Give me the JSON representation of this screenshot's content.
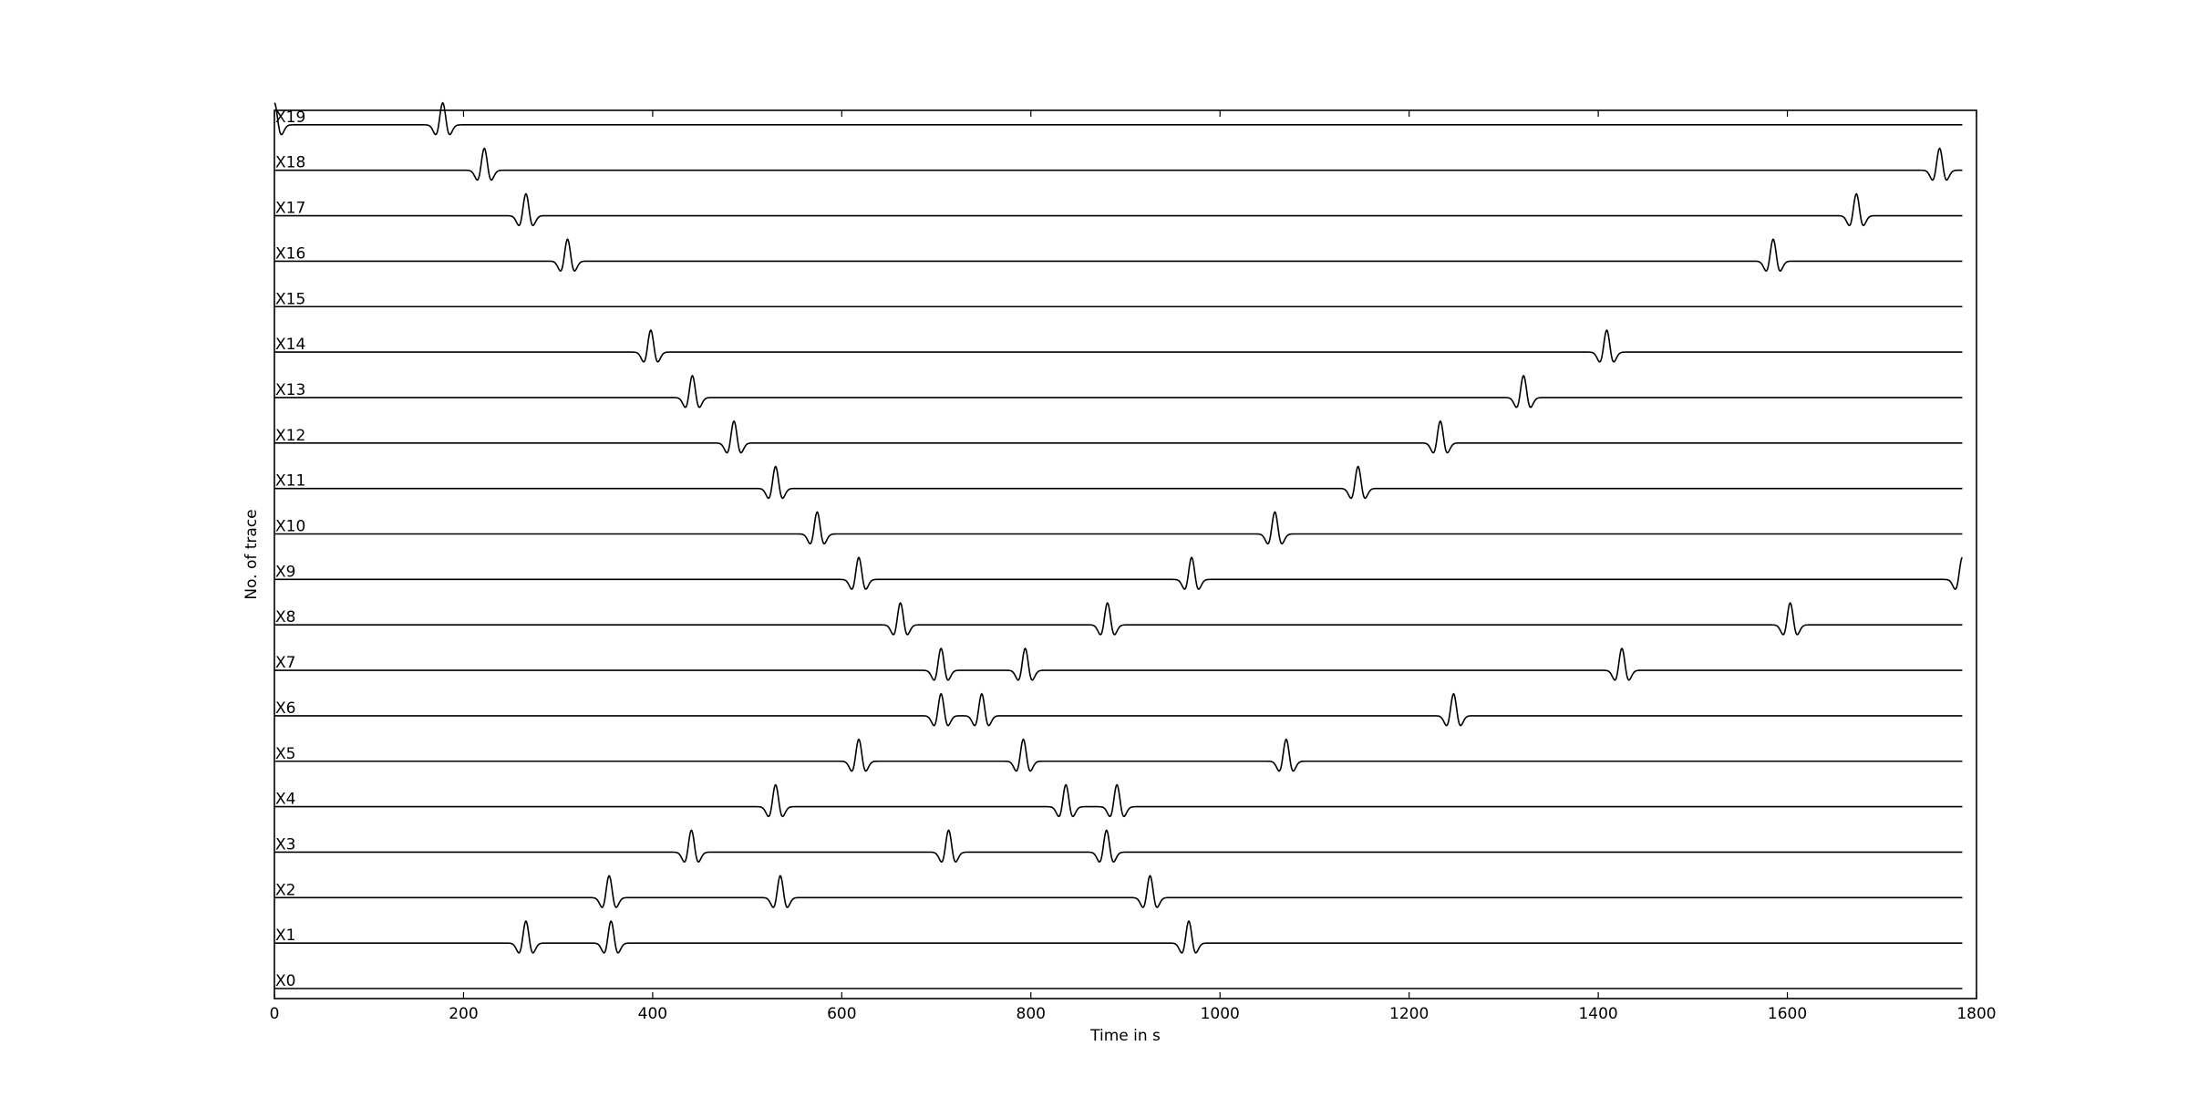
{
  "chart_data": {
    "type": "line",
    "title": "",
    "xlabel": "Time in s",
    "ylabel": "No. of trace",
    "xlim": [
      0,
      1800
    ],
    "x_ticks": [
      0,
      200,
      400,
      600,
      800,
      1000,
      1200,
      1400,
      1600,
      1800
    ],
    "x_tick_labels": [
      "0",
      "200",
      "400",
      "600",
      "800",
      "1000",
      "1200",
      "1400",
      "1600",
      "1800"
    ],
    "x_data_range": [
      0,
      1785
    ],
    "grid": false,
    "legend": "none",
    "line_color": "#000000",
    "wavelet": "Ricker-like pulse (positive peak)",
    "traces": [
      {
        "label": "X0",
        "pulses": []
      },
      {
        "label": "X1",
        "pulses": [
          266,
          356,
          967
        ]
      },
      {
        "label": "X2",
        "pulses": [
          354,
          535,
          926
        ]
      },
      {
        "label": "X3",
        "pulses": [
          441,
          713,
          880
        ]
      },
      {
        "label": "X4",
        "pulses": [
          530,
          837,
          891
        ]
      },
      {
        "label": "X5",
        "pulses": [
          618,
          792,
          1070
        ]
      },
      {
        "label": "X6",
        "pulses": [
          705,
          748,
          1247
        ]
      },
      {
        "label": "X7",
        "pulses": [
          705,
          794,
          1425
        ]
      },
      {
        "label": "X8",
        "pulses": [
          662,
          881,
          1603
        ]
      },
      {
        "label": "X9",
        "pulses": [
          618,
          970,
          1785
        ]
      },
      {
        "label": "X10",
        "pulses": [
          574,
          1058
        ]
      },
      {
        "label": "X11",
        "pulses": [
          530,
          1146
        ]
      },
      {
        "label": "X12",
        "pulses": [
          486,
          1233
        ]
      },
      {
        "label": "X13",
        "pulses": [
          442,
          1321
        ]
      },
      {
        "label": "X14",
        "pulses": [
          398,
          1409
        ]
      },
      {
        "label": "X15",
        "pulses": []
      },
      {
        "label": "X16",
        "pulses": [
          310,
          1585
        ]
      },
      {
        "label": "X17",
        "pulses": [
          266,
          1673
        ]
      },
      {
        "label": "X18",
        "pulses": [
          222,
          1761
        ]
      },
      {
        "label": "X19",
        "pulses": [
          0,
          178
        ]
      }
    ]
  }
}
